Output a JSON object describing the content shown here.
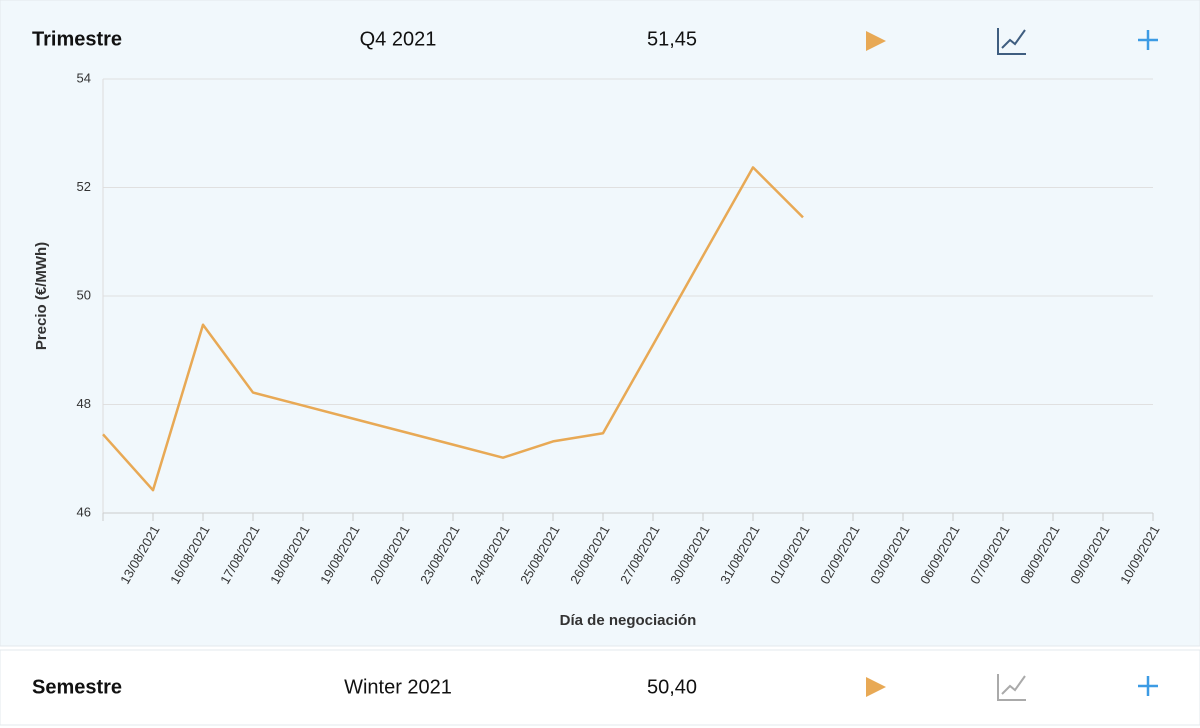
{
  "rows": [
    {
      "label": "Trimestre",
      "product": "Q4 2021",
      "price": "51,45"
    },
    {
      "label": "Semestre",
      "product": "Winter 2021",
      "price": "50,40"
    }
  ],
  "chart_data": {
    "type": "line",
    "y_label": "Precio (€/MWh)",
    "x_label": "Día de negociación",
    "categories": [
      null,
      "13/08/2021",
      "16/08/2021",
      "17/08/2021",
      "18/08/2021",
      "19/08/2021",
      "20/08/2021",
      "23/08/2021",
      "24/08/2021",
      "25/08/2021",
      "26/08/2021",
      "27/08/2021",
      "30/08/2021",
      "31/08/2021",
      "01/09/2021",
      "02/09/2021",
      "03/09/2021",
      "06/09/2021",
      "07/09/2021",
      "08/09/2021",
      "09/09/2021",
      "10/09/2021"
    ],
    "series": [
      {
        "name": "Q4 2021",
        "color": "#e8a955",
        "values": [
          47.45,
          46.42,
          49.47,
          48.22,
          47.98,
          47.74,
          47.5,
          47.26,
          47.02,
          47.32,
          47.47,
          49.1,
          50.74,
          52.37,
          51.45,
          null,
          null,
          null,
          null,
          null,
          null,
          null
        ]
      }
    ],
    "ylim": [
      46,
      54
    ],
    "yticks": [
      46,
      48,
      50,
      52,
      54
    ],
    "grid": true
  }
}
